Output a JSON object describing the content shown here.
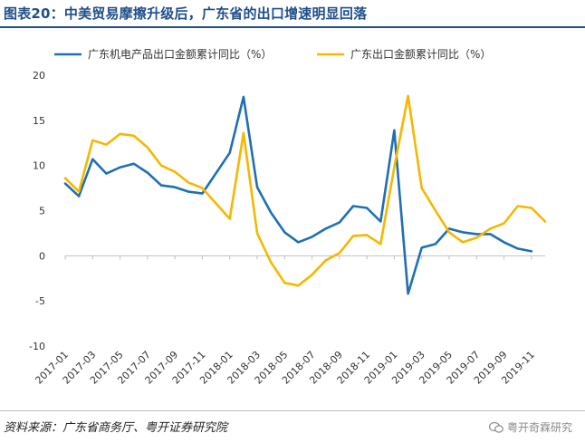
{
  "title": "图表20：中美贸易摩擦升级后，广东省的出口增速明显回落",
  "source": "资料来源：广东省商务厅、粤开证券研究院",
  "watermark": "粤开奇霖研究",
  "chart_data": {
    "type": "line",
    "title": "图表20：中美贸易摩擦升级后，广东省的出口增速明显回落",
    "xlabel": "",
    "ylabel": "",
    "ylim": [
      -10,
      20
    ],
    "yticks": [
      -10,
      -5,
      0,
      5,
      10,
      15,
      20
    ],
    "ytick_labels": [
      "-10",
      "-5",
      "0",
      "5",
      "10",
      "15",
      "20"
    ],
    "xtick_labels": [
      "2017-01",
      "2017-03",
      "2017-05",
      "2017-07",
      "2017-09",
      "2017-11",
      "2018-01",
      "2018-03",
      "2018-05",
      "2018-07",
      "2018-09",
      "2018-11",
      "2019-01",
      "2019-03",
      "2019-05",
      "2019-07",
      "2019-09",
      "2019-11"
    ],
    "x": [
      "2017-01",
      "2017-02",
      "2017-03",
      "2017-04",
      "2017-05",
      "2017-06",
      "2017-07",
      "2017-08",
      "2017-09",
      "2017-10",
      "2017-11",
      "2017-12",
      "2018-01",
      "2018-02",
      "2018-03",
      "2018-04",
      "2018-05",
      "2018-06",
      "2018-07",
      "2018-08",
      "2018-09",
      "2018-10",
      "2018-11",
      "2018-12",
      "2019-01",
      "2019-02",
      "2019-03",
      "2019-04",
      "2019-05",
      "2019-06",
      "2019-07",
      "2019-08",
      "2019-09",
      "2019-10",
      "2019-11",
      "2019-12"
    ],
    "grid": false,
    "legend_position": "top",
    "series": [
      {
        "name": "广东机电产品出口金额累计同比（%）",
        "color": "#1f6fb5",
        "values": [
          8.0,
          6.6,
          10.7,
          9.1,
          9.8,
          10.2,
          9.2,
          7.8,
          7.6,
          7.1,
          6.9,
          null,
          11.4,
          17.6,
          7.6,
          4.8,
          2.6,
          1.5,
          2.1,
          3.0,
          3.7,
          5.5,
          5.3,
          3.8,
          13.9,
          -4.2,
          0.9,
          1.3,
          3.0,
          2.6,
          2.4,
          2.4,
          1.5,
          0.8,
          0.5,
          null
        ]
      },
      {
        "name": "广东出口金额累计同比（%）",
        "color": "#f5b800",
        "values": [
          8.6,
          7.1,
          12.8,
          12.3,
          13.5,
          13.3,
          12.0,
          10.0,
          9.3,
          8.1,
          7.5,
          null,
          4.1,
          13.6,
          2.5,
          -0.7,
          -3.0,
          -3.3,
          -2.1,
          -0.5,
          0.3,
          2.2,
          2.3,
          1.3,
          9.8,
          17.7,
          7.5,
          5.0,
          2.6,
          1.5,
          2.0,
          3.0,
          3.6,
          5.5,
          5.3,
          3.8
        ]
      }
    ]
  }
}
